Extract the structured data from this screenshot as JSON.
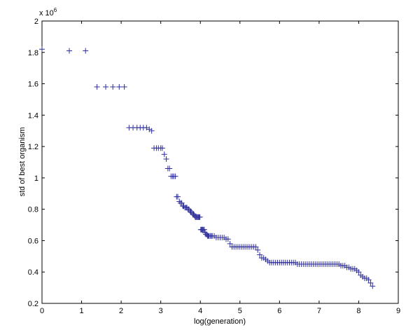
{
  "chart_data": {
    "type": "scatter",
    "title": "",
    "xlabel": "log(generation)",
    "ylabel": "std of best organism",
    "y_exponent_label": "x 10",
    "y_exponent": "6",
    "xlim": [
      0,
      9
    ],
    "ylim": [
      0.2,
      2
    ],
    "x_ticks": [
      "0",
      "1",
      "2",
      "3",
      "4",
      "5",
      "6",
      "7",
      "8",
      "9"
    ],
    "y_ticks": [
      "0.2",
      "0.4",
      "0.6",
      "0.8",
      "1",
      "1.2",
      "1.4",
      "1.6",
      "1.8",
      "2"
    ],
    "grid": false,
    "marker": "+",
    "marker_color": "#2e2e9a",
    "series": [
      {
        "name": "",
        "x": [
          0.0,
          0.69,
          1.1,
          1.39,
          1.61,
          1.79,
          1.95,
          2.08,
          2.2,
          2.3,
          2.4,
          2.48,
          2.56,
          2.64,
          2.71,
          2.77,
          2.83,
          2.89,
          2.94,
          3.0,
          3.04,
          3.09,
          3.14,
          3.18,
          3.22,
          3.26,
          3.3,
          3.33,
          3.37,
          3.4,
          3.43,
          3.47,
          3.5,
          3.53,
          3.56,
          3.58,
          3.61,
          3.64,
          3.66,
          3.69,
          3.71,
          3.74,
          3.76,
          3.78,
          3.81,
          3.83,
          3.85,
          3.87,
          3.89,
          3.91,
          3.93,
          3.95,
          3.97,
          3.99,
          4.01,
          4.03,
          4.04,
          4.06,
          4.08,
          4.1,
          4.12,
          4.14,
          4.16,
          4.18,
          4.2,
          4.22,
          4.25,
          4.28,
          4.3,
          4.35,
          4.4,
          4.45,
          4.5,
          4.55,
          4.6,
          4.65,
          4.7,
          4.75,
          4.8,
          4.85,
          4.9,
          4.95,
          5.0,
          5.05,
          5.1,
          5.15,
          5.2,
          5.25,
          5.3,
          5.35,
          5.4,
          5.45,
          5.5,
          5.55,
          5.6,
          5.65,
          5.7,
          5.75,
          5.8,
          5.85,
          5.9,
          5.95,
          6.0,
          6.05,
          6.1,
          6.15,
          6.2,
          6.25,
          6.3,
          6.35,
          6.4,
          6.45,
          6.5,
          6.55,
          6.6,
          6.65,
          6.7,
          6.75,
          6.8,
          6.85,
          6.9,
          6.95,
          7.0,
          7.05,
          7.1,
          7.15,
          7.2,
          7.25,
          7.3,
          7.35,
          7.4,
          7.45,
          7.5,
          7.55,
          7.6,
          7.65,
          7.7,
          7.75,
          7.8,
          7.85,
          7.9,
          7.95,
          8.0,
          8.05,
          8.1,
          8.15,
          8.2,
          8.25,
          8.3,
          8.35
        ],
        "y": [
          1.82,
          1.81,
          1.81,
          1.58,
          1.58,
          1.58,
          1.58,
          1.58,
          1.32,
          1.32,
          1.32,
          1.32,
          1.32,
          1.32,
          1.31,
          1.3,
          1.19,
          1.19,
          1.19,
          1.19,
          1.19,
          1.15,
          1.12,
          1.06,
          1.06,
          1.01,
          1.01,
          1.01,
          1.01,
          0.88,
          0.88,
          0.85,
          0.84,
          0.84,
          0.82,
          0.82,
          0.81,
          0.81,
          0.81,
          0.8,
          0.8,
          0.79,
          0.78,
          0.78,
          0.77,
          0.77,
          0.76,
          0.75,
          0.75,
          0.75,
          0.75,
          0.75,
          0.75,
          0.75,
          0.67,
          0.67,
          0.67,
          0.67,
          0.67,
          0.67,
          0.65,
          0.64,
          0.64,
          0.63,
          0.63,
          0.63,
          0.63,
          0.63,
          0.63,
          0.63,
          0.62,
          0.62,
          0.62,
          0.62,
          0.62,
          0.61,
          0.61,
          0.58,
          0.56,
          0.56,
          0.56,
          0.56,
          0.56,
          0.56,
          0.56,
          0.56,
          0.56,
          0.56,
          0.56,
          0.56,
          0.56,
          0.54,
          0.51,
          0.49,
          0.49,
          0.48,
          0.47,
          0.46,
          0.46,
          0.46,
          0.46,
          0.46,
          0.46,
          0.46,
          0.46,
          0.46,
          0.46,
          0.46,
          0.46,
          0.46,
          0.46,
          0.45,
          0.45,
          0.45,
          0.45,
          0.45,
          0.45,
          0.45,
          0.45,
          0.45,
          0.45,
          0.45,
          0.45,
          0.45,
          0.45,
          0.45,
          0.45,
          0.45,
          0.45,
          0.45,
          0.45,
          0.45,
          0.45,
          0.44,
          0.44,
          0.44,
          0.43,
          0.43,
          0.42,
          0.42,
          0.42,
          0.41,
          0.4,
          0.38,
          0.37,
          0.36,
          0.36,
          0.35,
          0.33,
          0.31
        ]
      }
    ]
  }
}
